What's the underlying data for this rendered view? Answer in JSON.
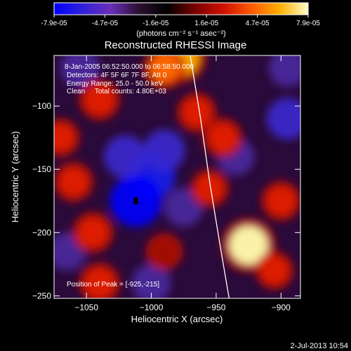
{
  "colorbar": {
    "tick_labels": [
      "-7.9e-05",
      "-4.7e-05",
      "-1.6e-05",
      "1.6e-05",
      "4.7e-05",
      "7.9e-05"
    ],
    "unit_label": "(photons cm⁻² s⁻¹ asec⁻²)",
    "colors": [
      "#0000ff",
      "#3020d8",
      "#6a2fb8",
      "#2a1030",
      "#000000",
      "#7a0000",
      "#d01000",
      "#ff5a00",
      "#ffb000",
      "#ffffcc"
    ]
  },
  "chart_data": {
    "type": "heatmap",
    "title": "Reconstructed RHESSI Image",
    "xlabel": "Heliocentric X (arcsec)",
    "ylabel": "Heliocentric Y (arcsec)",
    "xlim": [
      -1075,
      -885
    ],
    "ylim": [
      -252,
      -60
    ],
    "x_ticks": [
      -1050,
      -1000,
      -950,
      -900
    ],
    "x_tick_labels": [
      "−1050",
      "−1000",
      "−950",
      "−900"
    ],
    "y_ticks": [
      -100,
      -150,
      -200,
      -250
    ],
    "y_tick_labels": [
      "−100",
      "−150",
      "−200",
      "−250"
    ],
    "color_range": [
      -7.9e-05,
      7.9e-05
    ],
    "annotations": [
      "8-Jan-2005 06:52:50.000 to 06:58:50.000",
      "Detectors: 4F 5F 6F 7F 8F, Att 0",
      "Energy Range: 25.0 - 50.0 keV",
      "Clean     Total counts: 4.80E+03",
      "Position of Peak = [-925,-215]"
    ],
    "peak": {
      "x": -925,
      "y": -215
    },
    "bright_spots": [
      {
        "x": -977,
        "y": -62,
        "level": 0.85
      },
      {
        "x": -990,
        "y": -70,
        "level": 0.6
      },
      {
        "x": -1040,
        "y": -95,
        "level": 0.55
      },
      {
        "x": -925,
        "y": -210,
        "level": 1.0
      },
      {
        "x": -1060,
        "y": -160,
        "level": 0.5
      },
      {
        "x": -1045,
        "y": -200,
        "level": 0.55
      },
      {
        "x": -1040,
        "y": -240,
        "level": 0.55
      },
      {
        "x": -965,
        "y": -105,
        "level": 0.5
      },
      {
        "x": -945,
        "y": -125,
        "level": 0.5
      },
      {
        "x": -900,
        "y": -175,
        "level": 0.5
      },
      {
        "x": -955,
        "y": -165,
        "level": 0.45
      },
      {
        "x": -905,
        "y": -230,
        "level": 0.45
      },
      {
        "x": -990,
        "y": -215,
        "level": 0.4
      },
      {
        "x": -1070,
        "y": -125,
        "level": 0.45
      }
    ],
    "dark_spots": [
      {
        "x": -1000,
        "y": -155,
        "level": -0.85
      },
      {
        "x": -1012,
        "y": -175,
        "level": -1.0
      },
      {
        "x": -990,
        "y": -135,
        "level": -0.6
      },
      {
        "x": -1020,
        "y": -140,
        "level": -0.65
      },
      {
        "x": -975,
        "y": -180,
        "level": -0.5
      },
      {
        "x": -1055,
        "y": -70,
        "level": -0.5
      },
      {
        "x": -1065,
        "y": -215,
        "level": -0.45
      },
      {
        "x": -895,
        "y": -110,
        "level": -0.6
      },
      {
        "x": -935,
        "y": -140,
        "level": -0.45
      },
      {
        "x": -1000,
        "y": -240,
        "level": -0.5
      },
      {
        "x": -895,
        "y": -70,
        "level": -0.45
      }
    ],
    "limb_curve": [
      [
        -970,
        -60
      ],
      [
        -962,
        -110
      ],
      [
        -955,
        -160
      ],
      [
        -947,
        -210
      ],
      [
        -940,
        -252
      ]
    ]
  },
  "footer": {
    "timestamp": "2-Jul-2013 10:54"
  }
}
